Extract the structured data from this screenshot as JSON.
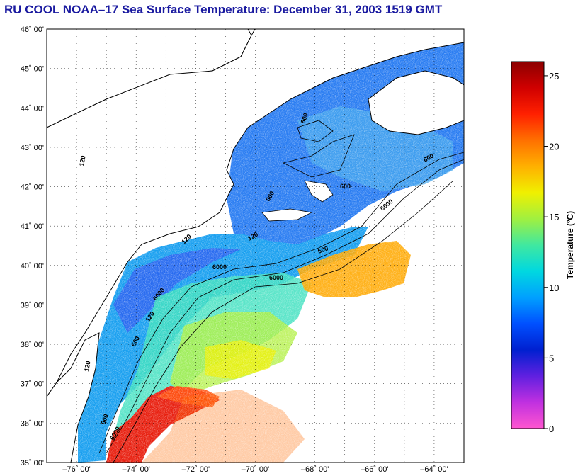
{
  "title": "RU COOL  NOAA–17  Sea Surface Temperature:  December 31, 2003 1519 GMT",
  "latitudes": [
    "46˚ 00'",
    "45˚ 00'",
    "44˚ 00'",
    "43˚ 00'",
    "42˚ 00'",
    "41˚ 00'",
    "40˚ 00'",
    "39˚ 00'",
    "38˚ 00'",
    "37˚ 00'",
    "36˚ 00'",
    "35˚ 00'"
  ],
  "longitudes": [
    "–76˚ 00'",
    "–74˚ 00'",
    "–72˚ 00'",
    "–70˚ 00'",
    "–68˚ 00'",
    "–66˚ 00'",
    "–64˚ 00'"
  ],
  "colorbar": {
    "title": "Temperature (ºC)",
    "ticks": [
      "25",
      "20",
      "15",
      "10",
      "5",
      "0"
    ],
    "range": [
      0,
      26
    ],
    "stops": [
      "#ff55d0",
      "#c030e0",
      "#6020e0",
      "#0020d0",
      "#0050ff",
      "#00a0ff",
      "#00d8e0",
      "#40e8a0",
      "#a0f040",
      "#f0f000",
      "#ffb000",
      "#ff7000",
      "#ff2000",
      "#d00000",
      "#8c0000"
    ]
  },
  "isobaths": [
    "600",
    "600",
    "6000",
    "120",
    "600",
    "6000",
    "600",
    "600",
    "6000",
    "120",
    "120",
    "6000",
    "600",
    "120",
    "600",
    "120",
    "6000"
  ],
  "map": {
    "lat_range": [
      35,
      46
    ],
    "lon_range": [
      -77,
      -63
    ],
    "grid": "dotted",
    "land_color": "#ffffff",
    "coast_color": "#000000"
  }
}
